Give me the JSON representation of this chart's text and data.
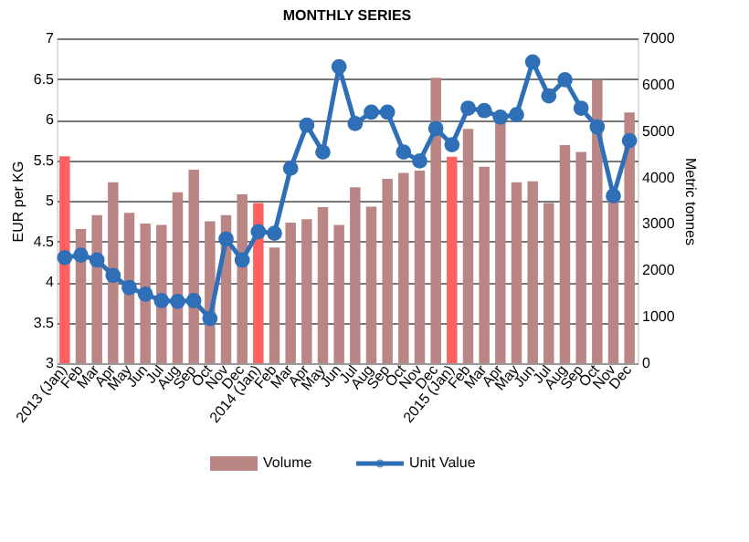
{
  "chart_data": {
    "type": "bar",
    "title": "MONTHLY SERIES",
    "ylabel": "EUR per KG",
    "y2label": "Metric tonnes",
    "categories": [
      "2013 (Jan)",
      "Feb",
      "Mar",
      "Apr",
      "May",
      "Jun",
      "Jul",
      "Aug",
      "Sep",
      "Oct",
      "Nov",
      "Dec",
      "2014 (Jan)",
      "Feb",
      "Mar",
      "Apr",
      "May",
      "Jun",
      "Jul",
      "Aug",
      "Sep",
      "Oct",
      "Nov",
      "Dec",
      "2015 (Jan)",
      "Feb",
      "Mar",
      "Apr",
      "May",
      "Jun",
      "Jul",
      "Aug",
      "Sep",
      "Oct",
      "Nov",
      "Dec"
    ],
    "series": [
      {
        "name": "Volume",
        "axis": "y2",
        "color": "#b98585",
        "colors": [
          "#ff6161",
          "#b98585",
          "#b98585",
          "#b98585",
          "#b98585",
          "#b98585",
          "#b98585",
          "#b98585",
          "#b98585",
          "#b98585",
          "#b98585",
          "#b98585",
          "#ff6161",
          "#b98585",
          "#b98585",
          "#b98585",
          "#b98585",
          "#b98585",
          "#b98585",
          "#b98585",
          "#b98585",
          "#b98585",
          "#b98585",
          "#b98585",
          "#ff6161",
          "#b98585",
          "#b98585",
          "#b98585",
          "#b98585",
          "#b98585",
          "#b98585",
          "#b98585",
          "#b98585",
          "#b98585",
          "#b98585",
          "#b98585"
        ],
        "values": [
          4460,
          2890,
          3190,
          3900,
          3240,
          3010,
          2980,
          3680,
          4170,
          3060,
          3190,
          3640,
          3450,
          2490,
          3030,
          3100,
          3360,
          2980,
          3790,
          3370,
          3970,
          4100,
          4150,
          6150,
          4450,
          5050,
          4230,
          5200,
          3900,
          3920,
          3450,
          4700,
          4550,
          6100,
          3500,
          5400
        ]
      },
      {
        "name": "Unit Value",
        "type": "line",
        "color": "#2e6fb7",
        "marker": "circle",
        "values": [
          4.3,
          4.33,
          4.27,
          4.08,
          3.93,
          3.85,
          3.77,
          3.76,
          3.77,
          3.55,
          4.53,
          4.27,
          4.62,
          4.6,
          5.4,
          5.93,
          5.6,
          6.65,
          5.95,
          6.09,
          6.09,
          5.6,
          5.49,
          5.89,
          5.69,
          6.14,
          6.11,
          6.03,
          6.06,
          6.71,
          6.29,
          6.49,
          6.14,
          5.91,
          5.06,
          5.74
        ]
      }
    ],
    "ylim": [
      3,
      7
    ],
    "yticks": [
      3,
      3.5,
      4,
      4.5,
      5,
      5.5,
      6,
      6.5,
      7
    ],
    "y2lim": [
      0,
      7000
    ],
    "y2ticks": [
      0,
      1000,
      2000,
      3000,
      4000,
      5000,
      6000,
      7000
    ],
    "grid": "y",
    "legend": "bottom"
  }
}
